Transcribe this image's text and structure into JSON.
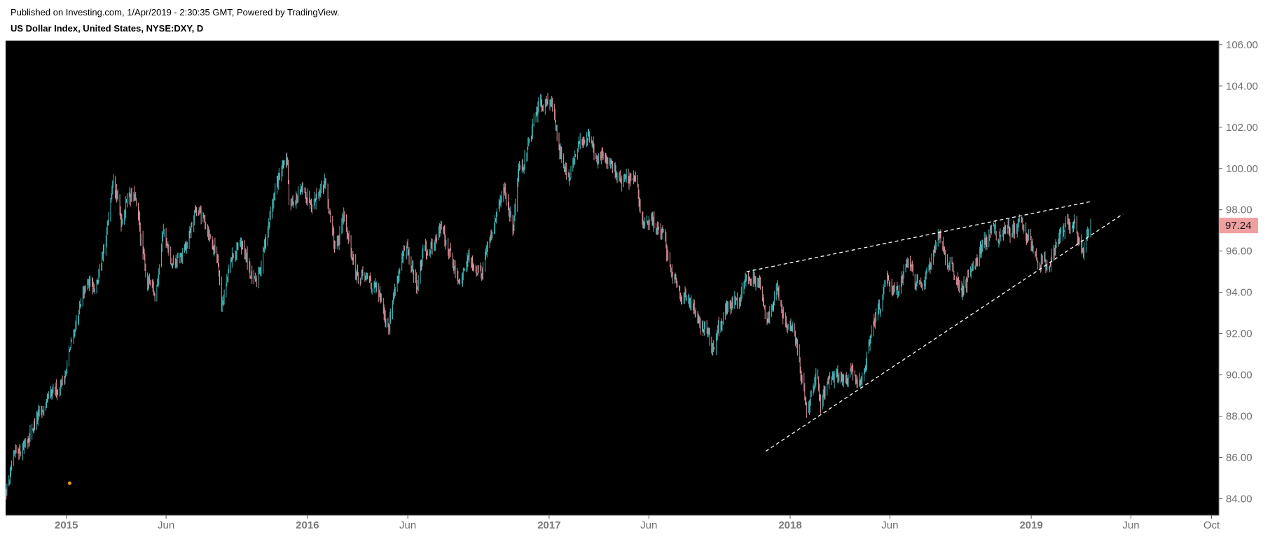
{
  "header": {
    "published": "Published on Investing.com, 1/Apr/2019 - 2:30:35 GMT, Powered by TradingView.",
    "symbol_title": "US Dollar Index, United States, NYSE:DXY, D"
  },
  "colors": {
    "background": "#000000",
    "candle_up": "#3fb8b8",
    "candle_down": "#d9909a",
    "trendline": "#ffffff",
    "last_price_bg": "#f0a0a0",
    "axis": "#5a5a5a",
    "marker": "#e89a1a"
  },
  "chart_data": {
    "type": "candlestick",
    "title": "US Dollar Index, United States, NYSE:DXY, D",
    "timeframe": "D",
    "x_range": [
      "2014-10-01",
      "2019-10-10"
    ],
    "ylim": [
      83.2,
      106.2
    ],
    "y_ticks": [
      "84.00",
      "86.00",
      "88.00",
      "90.00",
      "92.00",
      "94.00",
      "96.00",
      "98.00",
      "100.00",
      "102.00",
      "104.00",
      "106.00"
    ],
    "x_ticks": [
      {
        "date": "2015-01-01",
        "label": "2015",
        "major": true
      },
      {
        "date": "2015-06-01",
        "label": "Jun",
        "major": false
      },
      {
        "date": "2016-01-01",
        "label": "2016",
        "major": true
      },
      {
        "date": "2016-06-01",
        "label": "Jun",
        "major": false
      },
      {
        "date": "2017-01-01",
        "label": "2017",
        "major": true
      },
      {
        "date": "2017-06-01",
        "label": "Jun",
        "major": false
      },
      {
        "date": "2018-01-01",
        "label": "2018",
        "major": true
      },
      {
        "date": "2018-06-01",
        "label": "Jun",
        "major": false
      },
      {
        "date": "2019-01-01",
        "label": "2019",
        "major": true
      },
      {
        "date": "2019-06-01",
        "label": "Jun",
        "major": false
      },
      {
        "date": "2019-10-01",
        "label": "Oct",
        "major": false
      }
    ],
    "price_path": [
      [
        "2014-10-01",
        84.5
      ],
      [
        "2014-10-15",
        85.8
      ],
      [
        "2014-11-01",
        86.9
      ],
      [
        "2014-11-15",
        87.8
      ],
      [
        "2014-12-01",
        88.3
      ],
      [
        "2014-12-15",
        89.0
      ],
      [
        "2015-01-01",
        90.3
      ],
      [
        "2015-01-15",
        92.5
      ],
      [
        "2015-02-01",
        94.2
      ],
      [
        "2015-02-15",
        94.6
      ],
      [
        "2015-03-01",
        95.8
      ],
      [
        "2015-03-13",
        100.3
      ],
      [
        "2015-03-25",
        97.5
      ],
      [
        "2015-04-05",
        99.0
      ],
      [
        "2015-04-15",
        98.5
      ],
      [
        "2015-05-01",
        94.9
      ],
      [
        "2015-05-15",
        93.6
      ],
      [
        "2015-05-28",
        97.2
      ],
      [
        "2015-06-10",
        95.0
      ],
      [
        "2015-07-01",
        96.0
      ],
      [
        "2015-07-15",
        97.9
      ],
      [
        "2015-08-01",
        97.3
      ],
      [
        "2015-08-20",
        95.5
      ],
      [
        "2015-08-24",
        93.5
      ],
      [
        "2015-09-10",
        95.7
      ],
      [
        "2015-09-25",
        96.2
      ],
      [
        "2015-10-15",
        94.2
      ],
      [
        "2015-11-01",
        97.0
      ],
      [
        "2015-11-15",
        99.2
      ],
      [
        "2015-12-02",
        100.3
      ],
      [
        "2015-12-04",
        98.3
      ],
      [
        "2015-12-20",
        98.7
      ],
      [
        "2016-01-10",
        98.7
      ],
      [
        "2016-01-28",
        99.5
      ],
      [
        "2016-02-10",
        96.0
      ],
      [
        "2016-02-25",
        97.6
      ],
      [
        "2016-03-17",
        94.8
      ],
      [
        "2016-04-10",
        94.3
      ],
      [
        "2016-05-03",
        92.6
      ],
      [
        "2016-05-15",
        94.7
      ],
      [
        "2016-05-30",
        95.9
      ],
      [
        "2016-06-15",
        94.3
      ],
      [
        "2016-06-24",
        95.8
      ],
      [
        "2016-07-10",
        96.5
      ],
      [
        "2016-07-25",
        97.2
      ],
      [
        "2016-08-18",
        94.3
      ],
      [
        "2016-09-01",
        95.8
      ],
      [
        "2016-09-20",
        95.2
      ],
      [
        "2016-10-10",
        97.5
      ],
      [
        "2016-10-25",
        98.8
      ],
      [
        "2016-11-08",
        97.3
      ],
      [
        "2016-11-15",
        100.0
      ],
      [
        "2016-12-01",
        101.1
      ],
      [
        "2016-12-20",
        103.2
      ],
      [
        "2017-01-03",
        103.6
      ],
      [
        "2017-01-15",
        101.2
      ],
      [
        "2017-02-01",
        99.5
      ],
      [
        "2017-02-15",
        101.0
      ],
      [
        "2017-03-01",
        101.8
      ],
      [
        "2017-03-15",
        100.3
      ],
      [
        "2017-04-01",
        100.5
      ],
      [
        "2017-04-20",
        99.5
      ],
      [
        "2017-05-10",
        99.3
      ],
      [
        "2017-05-25",
        97.2
      ],
      [
        "2017-06-15",
        97.3
      ],
      [
        "2017-07-01",
        95.6
      ],
      [
        "2017-07-25",
        93.8
      ],
      [
        "2017-08-10",
        93.2
      ],
      [
        "2017-09-08",
        91.4
      ],
      [
        "2017-09-25",
        93.0
      ],
      [
        "2017-10-10",
        93.7
      ],
      [
        "2017-10-27",
        94.9
      ],
      [
        "2017-11-10",
        94.5
      ],
      [
        "2017-11-27",
        92.9
      ],
      [
        "2017-12-12",
        94.0
      ],
      [
        "2017-12-25",
        92.5
      ],
      [
        "2018-01-10",
        91.5
      ],
      [
        "2018-01-26",
        88.6
      ],
      [
        "2018-02-10",
        90.0
      ],
      [
        "2018-02-16",
        88.6
      ],
      [
        "2018-03-01",
        89.9
      ],
      [
        "2018-03-15",
        89.7
      ],
      [
        "2018-04-01",
        90.0
      ],
      [
        "2018-04-17",
        89.3
      ],
      [
        "2018-05-01",
        91.8
      ],
      [
        "2018-05-15",
        93.2
      ],
      [
        "2018-05-29",
        94.8
      ],
      [
        "2018-06-14",
        94.2
      ],
      [
        "2018-06-28",
        95.3
      ],
      [
        "2018-07-15",
        94.6
      ],
      [
        "2018-08-01",
        94.9
      ],
      [
        "2018-08-15",
        96.8
      ],
      [
        "2018-09-01",
        95.2
      ],
      [
        "2018-09-20",
        94.2
      ],
      [
        "2018-10-10",
        95.6
      ],
      [
        "2018-10-31",
        97.0
      ],
      [
        "2018-11-15",
        96.6
      ],
      [
        "2018-12-01",
        97.1
      ],
      [
        "2018-12-14",
        97.4
      ],
      [
        "2019-01-01",
        96.3
      ],
      [
        "2019-01-10",
        95.4
      ],
      [
        "2019-01-30",
        95.4
      ],
      [
        "2019-02-15",
        96.9
      ],
      [
        "2019-03-07",
        97.6
      ],
      [
        "2019-03-20",
        95.8
      ],
      [
        "2019-04-01",
        97.24
      ]
    ],
    "trendlines": [
      {
        "style": "dashed",
        "from": [
          "2017-10-27",
          95.0
        ],
        "to": [
          "2019-04-01",
          98.4
        ]
      },
      {
        "style": "dashed",
        "from": [
          "2017-11-25",
          86.3
        ],
        "to": [
          "2019-05-20",
          97.8
        ]
      }
    ],
    "last_price": "97.24"
  },
  "notes": {}
}
